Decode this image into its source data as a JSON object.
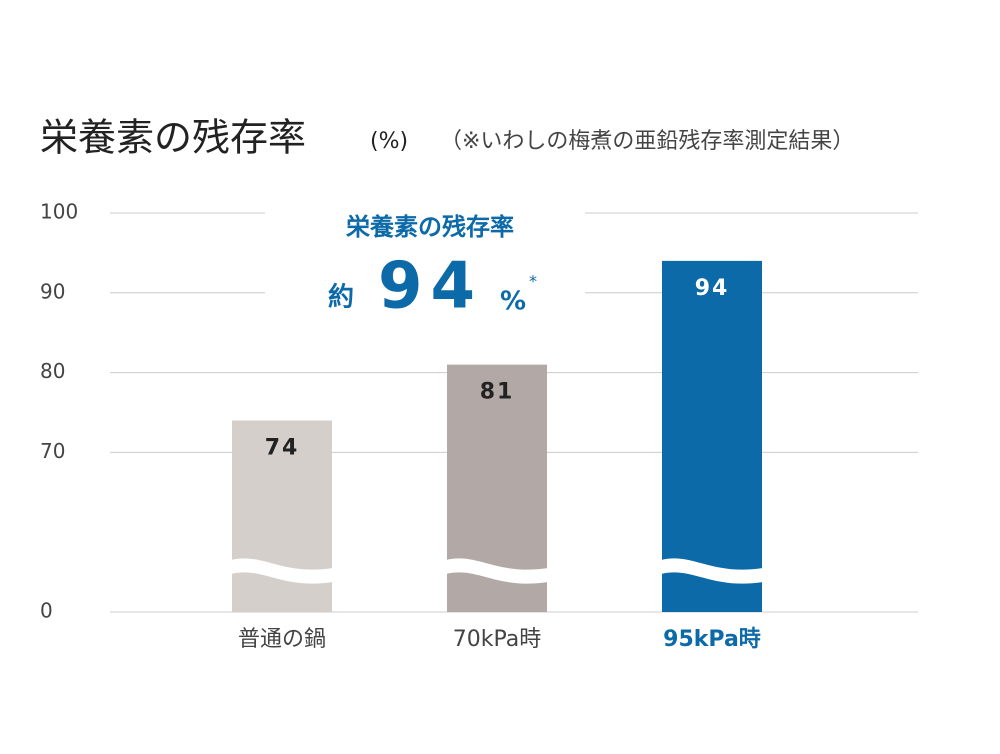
{
  "chart_data": {
    "type": "bar",
    "title": "栄養素の残存率",
    "unit_label": "(%)",
    "subtitle": "（※いわしの梅煮の亜鉛残存率測定結果）",
    "categories": [
      "普通の鍋",
      "70kPa時",
      "95kPa時"
    ],
    "values": [
      74,
      81,
      94
    ],
    "colors": [
      "#d5cfcc",
      "#b2a8a5",
      "#0d6aa8"
    ],
    "highlight": 2,
    "ylim": [
      0,
      100
    ],
    "yticks": [
      0,
      70,
      80,
      90,
      100
    ],
    "axis_break": true,
    "grid": true,
    "annotation": {
      "title": "栄養素の残存率",
      "prefix": "約",
      "value": 94,
      "unit": "%",
      "note_mark": "*"
    }
  }
}
